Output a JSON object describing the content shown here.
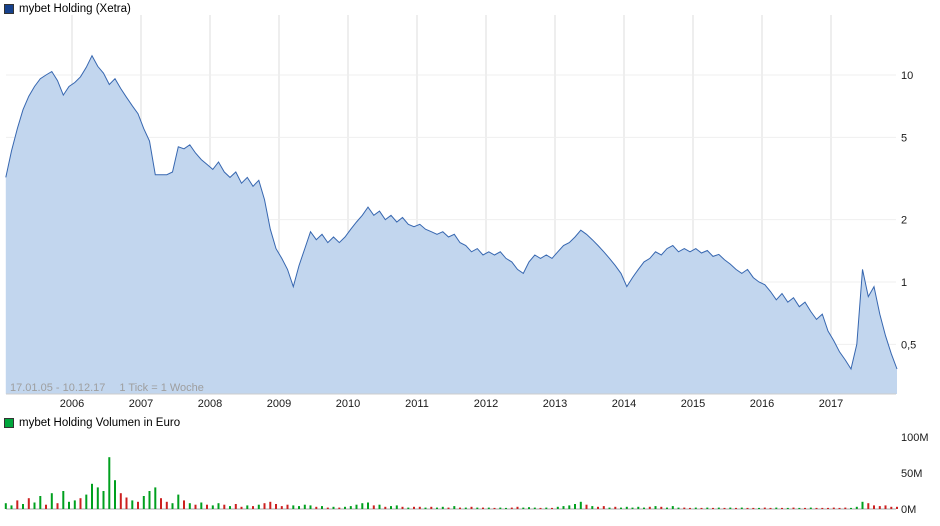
{
  "chart_data": [
    {
      "type": "area",
      "title": "mybet Holding (Xetra)",
      "series_name": "mybet Holding",
      "y_scale": "log",
      "x_start": 2005.04,
      "x_step": 0.0833333,
      "xlim": [
        2005.04,
        2017.96
      ],
      "ylim": [
        0.3,
        14
      ],
      "x_ticks": [
        2006,
        2007,
        2008,
        2009,
        2010,
        2011,
        2012,
        2013,
        2014,
        2015,
        2016,
        2017
      ],
      "y_ticks": [
        10,
        5,
        2,
        1,
        0.5
      ],
      "y_tick_labels": [
        "10",
        "5",
        "2",
        "1",
        "0,5"
      ],
      "footer": [
        "17.01.05 - 10.12.17",
        "1 Tick = 1 Woche"
      ],
      "marker_color": "#16418c",
      "line_color": "#3767b0",
      "fill_color": "#c2d6ee",
      "values": [
        [
          3.2,
          4.3,
          5.5,
          6.8,
          7.9,
          8.8,
          9.6,
          10.0,
          10.4,
          9.4,
          8.0,
          8.8
        ],
        [
          9.2,
          9.8,
          10.9,
          12.4,
          11.0,
          10.2,
          9.0,
          9.6,
          8.6,
          7.8,
          7.1,
          6.5
        ],
        [
          5.5,
          4.8,
          3.3,
          3.3,
          3.3,
          3.4,
          4.5,
          4.4,
          4.6,
          4.2,
          3.9,
          3.7
        ],
        [
          3.5,
          3.8,
          3.4,
          3.2,
          3.4,
          3.0,
          3.2,
          2.9,
          3.1,
          2.5,
          1.8,
          1.45
        ],
        [
          1.3,
          1.15,
          0.95,
          1.2,
          1.45,
          1.75,
          1.6,
          1.7,
          1.55,
          1.65,
          1.55,
          1.65
        ],
        [
          1.8,
          1.95,
          2.1,
          2.3,
          2.1,
          2.2,
          2.0,
          2.1,
          1.95,
          2.05,
          1.9,
          1.85
        ],
        [
          1.9,
          1.8,
          1.75,
          1.7,
          1.75,
          1.65,
          1.7,
          1.55,
          1.5,
          1.4,
          1.45,
          1.35
        ],
        [
          1.4,
          1.35,
          1.4,
          1.3,
          1.25,
          1.15,
          1.1,
          1.25,
          1.35,
          1.3,
          1.35,
          1.3
        ],
        [
          1.4,
          1.5,
          1.55,
          1.65,
          1.78,
          1.7,
          1.6,
          1.5,
          1.4,
          1.3,
          1.2,
          1.1
        ],
        [
          0.95,
          1.05,
          1.15,
          1.25,
          1.3,
          1.4,
          1.35,
          1.45,
          1.5,
          1.4,
          1.45,
          1.4
        ],
        [
          1.45,
          1.38,
          1.42,
          1.33,
          1.36,
          1.28,
          1.22,
          1.15,
          1.1,
          1.15,
          1.05,
          1.0
        ],
        [
          0.97,
          0.9,
          0.82,
          0.88,
          0.8,
          0.84,
          0.76,
          0.8,
          0.72,
          0.66,
          0.7,
          0.58
        ],
        [
          0.52,
          0.46,
          0.42,
          0.38,
          0.5,
          1.15,
          0.85,
          0.95,
          0.7,
          0.55,
          0.45,
          0.38
        ]
      ]
    },
    {
      "type": "bar",
      "title": "mybet Holding Volumen in Euro",
      "unit": "EUR",
      "x_start": 2005.04,
      "x_step": 0.0833333,
      "y_ticks": [
        0,
        50,
        100
      ],
      "y_tick_labels": [
        "0M",
        "50M",
        "100M"
      ],
      "marker_color": "#00a63c",
      "up_color": "#00a01e",
      "down_color": "#cc2020",
      "values_millions": [
        [
          8,
          5,
          12,
          7,
          15,
          9,
          18,
          6,
          22,
          8,
          25,
          10
        ],
        [
          12,
          15,
          20,
          35,
          30,
          25,
          72,
          40,
          22,
          16,
          12,
          10
        ],
        [
          18,
          25,
          30,
          15,
          10,
          8,
          20,
          12,
          8,
          6,
          9,
          6
        ],
        [
          5,
          8,
          6,
          4,
          7,
          3,
          5,
          4,
          6,
          8,
          10,
          7
        ],
        [
          4,
          6,
          5,
          4,
          6,
          5,
          3,
          4,
          2,
          3,
          2,
          3
        ],
        [
          4,
          6,
          8,
          9,
          5,
          6,
          3,
          4,
          5,
          3,
          2,
          3
        ],
        [
          3,
          2,
          3,
          2,
          3,
          2,
          4,
          2,
          2,
          3,
          2,
          2
        ],
        [
          2,
          1.5,
          2,
          1.5,
          2,
          3,
          2,
          2.5,
          2,
          1.5,
          2,
          1.5
        ],
        [
          3,
          4,
          5,
          7,
          10,
          6,
          4,
          3,
          4,
          2,
          3,
          2
        ],
        [
          3,
          2,
          3,
          2,
          3,
          4,
          3,
          2,
          4,
          2,
          2,
          1.5
        ],
        [
          2,
          1.5,
          2,
          1.5,
          2,
          1.5,
          2,
          1.5,
          2,
          1.5,
          1.5,
          1.5
        ],
        [
          2,
          1.5,
          2,
          1.5,
          1.5,
          2,
          1.5,
          1.5,
          2,
          1.5,
          1.5,
          1.5
        ],
        [
          2,
          1.5,
          2,
          1.5,
          3,
          10,
          8,
          5,
          4,
          5,
          3,
          3
        ]
      ],
      "bar_directions": [
        "ggrgrggrgrgg",
        "grggggggrrgr",
        "gggrrggrgrgr",
        "ggrgrrgrgrrr",
        "rrggggrgrgrg",
        "ggggrgrggrgr",
        "rgrggrgrgrgr",
        "grggrrgggrgr",
        "gggggrgrrgrg",
        "ggggrgrgggrr",
        "grgrgrgrgrrg",
        "rrgrgrgrgrrr",
        "rrrgggrrrrrr"
      ]
    }
  ]
}
